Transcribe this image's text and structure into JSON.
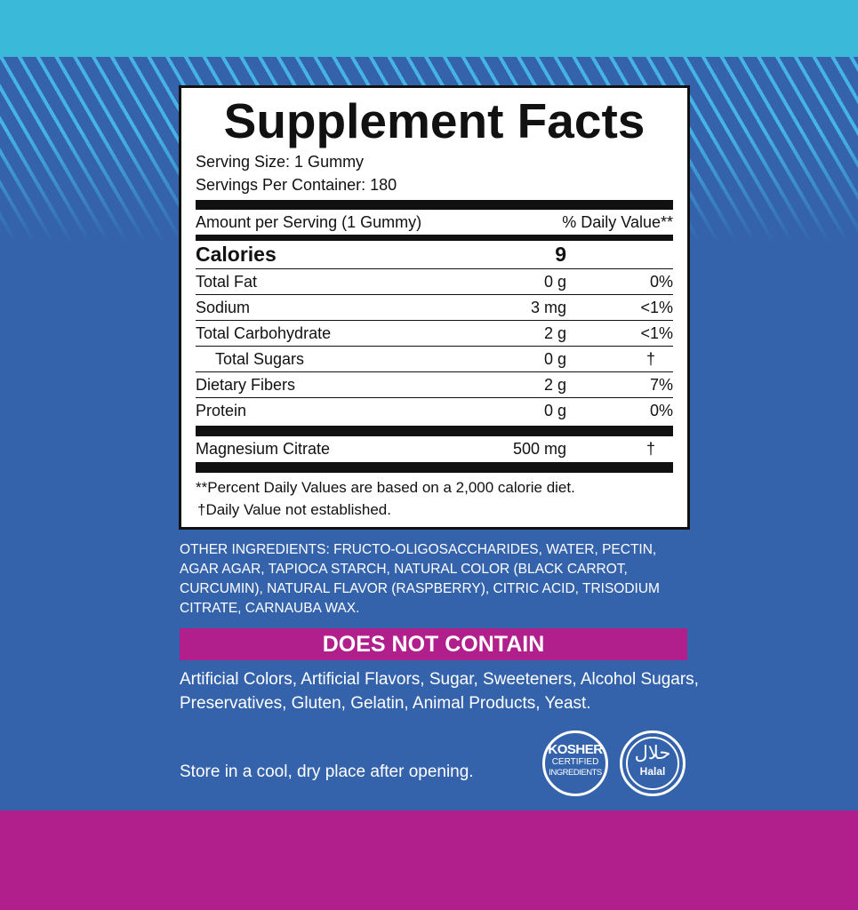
{
  "title": "Supplement Facts",
  "serving_size": "Serving Size: 1 Gummy",
  "servings_per_container": "Servings Per Container: 180",
  "amount_header": "Amount per Serving (1 Gummy)",
  "dv_header": "% Daily Value**",
  "calories": {
    "label": "Calories",
    "value": "9"
  },
  "rows": [
    {
      "name": "Total Fat",
      "amount": "0 g",
      "dv": "0%"
    },
    {
      "name": "Sodium",
      "amount": "3 mg",
      "dv": "<1%"
    },
    {
      "name": "Total Carbohydrate",
      "amount": "2 g",
      "dv": "<1%"
    },
    {
      "name": "Total Sugars",
      "amount": "0 g",
      "dv": "†"
    },
    {
      "name": "Dietary Fibers",
      "amount": "2 g",
      "dv": "7%"
    },
    {
      "name": "Protein",
      "amount": "0 g",
      "dv": "0%"
    }
  ],
  "magnesium": {
    "name": "Magnesium Citrate",
    "amount": "500 mg",
    "dv": "†"
  },
  "footnote1": "**Percent Daily Values are based on a 2,000 calorie diet.",
  "footnote2": "†Daily Value not established.",
  "other_label": "OTHER INGREDIENTS:",
  "other_text": " FRUCTO-OLIGOSACCHARIDES, WATER, PECTIN, AGAR AGAR, TAPIOCA STARCH, NATURAL COLOR (BLACK CARROT, CURCUMIN), NATURAL FLAVOR (RASPBERRY), CITRIC ACID, TRISODIUM CITRATE, CARNAUBA WAX.",
  "does_not_contain": "DOES NOT CONTAIN",
  "dnc_list": "Artificial Colors, Artificial Flavors, Sugar, Sweeteners, Alcohol Sugars, Preservatives, Gluten, Gelatin, Animal Products, Yeast.",
  "storage": "Store in a cool, dry place after opening.",
  "kosher": {
    "l1": "KOSHER",
    "l2": "CERTIFIED",
    "l3": "INGREDIENTS"
  },
  "halal": {
    "arabic": "حلال",
    "label": "Halal"
  },
  "colors": {
    "cyan": "#3bb9d8",
    "blue": "#3463ab",
    "magenta": "#b11f8c"
  }
}
